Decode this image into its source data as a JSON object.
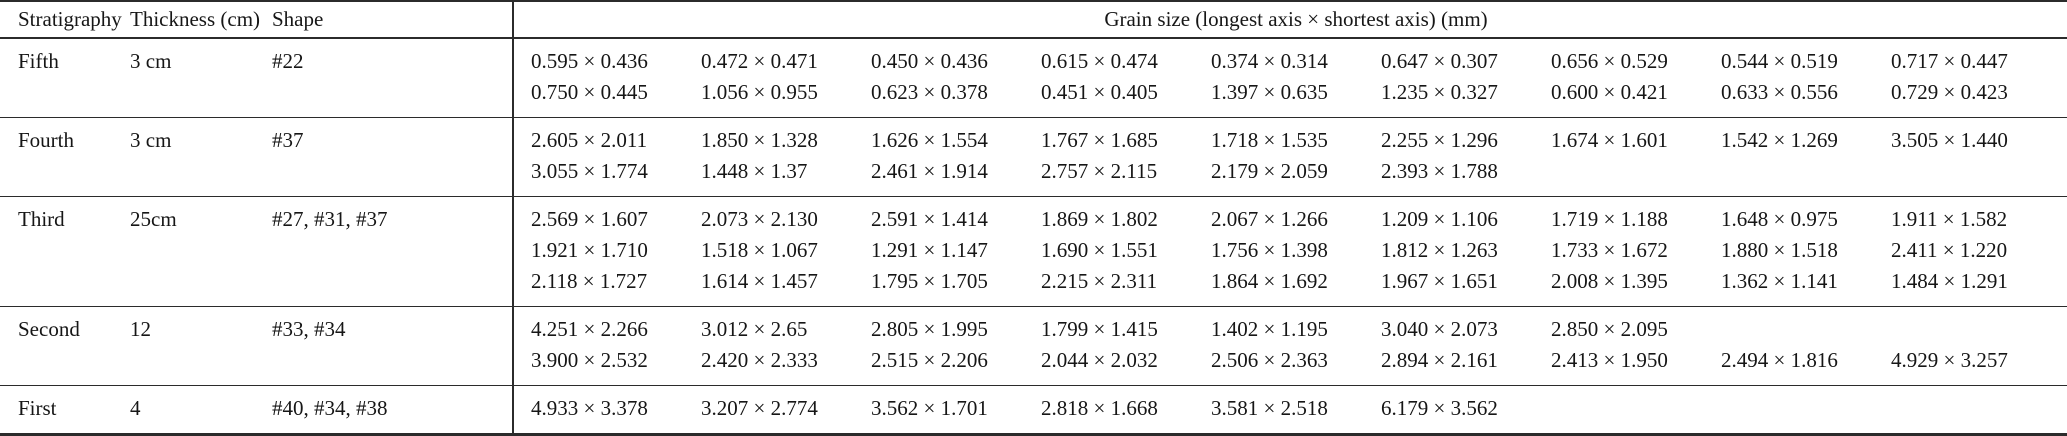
{
  "table": {
    "headers": {
      "stratigraphy": "Stratigraphy",
      "thickness": "Thickness (cm)",
      "shape": "Shape",
      "grain_size": "Grain size (longest axis × shortest axis) (mm)"
    },
    "rows": [
      {
        "stratigraphy": "Fifth",
        "thickness": "3 cm",
        "shape": "#22",
        "grain_lines": [
          [
            "0.595 × 0.436",
            "0.472 × 0.471",
            "0.450 × 0.436",
            "0.615 × 0.474",
            "0.374 × 0.314",
            "0.647 × 0.307",
            "0.656 × 0.529",
            "0.544 × 0.519",
            "0.717 × 0.447"
          ],
          [
            "0.750 × 0.445",
            "1.056 × 0.955",
            "0.623 × 0.378",
            "0.451 × 0.405",
            "1.397 × 0.635",
            "1.235 × 0.327",
            "0.600 × 0.421",
            "0.633 × 0.556",
            "0.729 × 0.423"
          ]
        ]
      },
      {
        "stratigraphy": "Fourth",
        "thickness": "3 cm",
        "shape": "#37",
        "grain_lines": [
          [
            "2.605 × 2.011",
            "1.850 × 1.328",
            "1.626 × 1.554",
            "1.767 × 1.685",
            "1.718 × 1.535",
            "2.255 × 1.296",
            "1.674 × 1.601",
            "1.542 × 1.269",
            "3.505 × 1.440"
          ],
          [
            "3.055 × 1.774",
            "1.448 × 1.37",
            "2.461 × 1.914",
            "2.757 × 2.115",
            "2.179 × 2.059",
            "2.393 × 1.788",
            "",
            "",
            ""
          ]
        ]
      },
      {
        "stratigraphy": "Third",
        "thickness": "25cm",
        "shape": "#27, #31, #37",
        "grain_lines": [
          [
            "2.569 × 1.607",
            "2.073 × 2.130",
            "2.591 × 1.414",
            "1.869 × 1.802",
            "2.067 × 1.266",
            "1.209 × 1.106",
            "1.719 × 1.188",
            "1.648 × 0.975",
            "1.911 × 1.582"
          ],
          [
            "1.921 × 1.710",
            "1.518 × 1.067",
            "1.291 × 1.147",
            "1.690 × 1.551",
            "1.756 × 1.398",
            "1.812 × 1.263",
            "1.733 × 1.672",
            "1.880 × 1.518",
            "2.411 × 1.220"
          ],
          [
            "2.118 × 1.727",
            "1.614 × 1.457",
            "1.795 × 1.705",
            "2.215 × 2.311",
            "1.864 × 1.692",
            "1.967 × 1.651",
            "2.008 × 1.395",
            "1.362 × 1.141",
            "1.484 × 1.291"
          ]
        ]
      },
      {
        "stratigraphy": "Second",
        "thickness": "12",
        "shape": "#33, #34",
        "grain_lines": [
          [
            "4.251 × 2.266",
            "3.012 × 2.65",
            "2.805 × 1.995",
            "1.799 × 1.415",
            "1.402 × 1.195",
            "3.040 × 2.073",
            "2.850 × 2.095",
            "",
            ""
          ],
          [
            "3.900 × 2.532",
            "2.420 × 2.333",
            "2.515 × 2.206",
            "2.044 × 2.032",
            "2.506 × 2.363",
            "2.894 × 2.161",
            "2.413 × 1.950",
            "2.494 × 1.816",
            "4.929 × 3.257"
          ]
        ]
      },
      {
        "stratigraphy": "First",
        "thickness": "4",
        "shape": "#40, #34, #38",
        "grain_lines": [
          [
            "4.933 × 3.378",
            "3.207 × 2.774",
            "3.562 × 1.701",
            "2.818 × 1.668",
            "3.581 × 2.518",
            "6.179 × 3.562",
            "",
            "",
            ""
          ]
        ]
      }
    ]
  }
}
